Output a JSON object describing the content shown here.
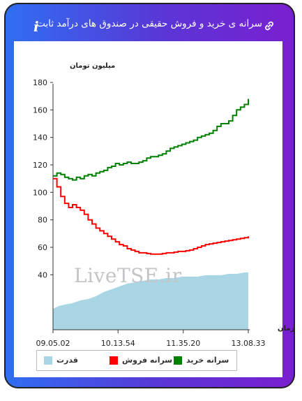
{
  "header": {
    "title": "سرانه ی خرید و فروش حقیقی در صندوق های درآمد ثابت",
    "info_icon": "i",
    "link_icon": "link-icon"
  },
  "watermark": "LiveTSE.ir",
  "colors": {
    "buy": "#008000",
    "sell": "#ff0000",
    "power": "#a9d6e5"
  },
  "chart_data": {
    "type": "line",
    "ylabel": "میلیون تومان",
    "xlabel": "زمان",
    "ylim": [
      0,
      180
    ],
    "y_ticks": [
      40,
      60,
      80,
      100,
      120,
      140,
      160,
      180
    ],
    "x_ticks": [
      "09.05.02",
      "10.13.54",
      "11.35.20",
      "13.08.33"
    ],
    "x_tick_positions": [
      0,
      0.333,
      0.667,
      1
    ],
    "legend": [
      "قدرت",
      "سرانه فروش",
      "سرانه خرید"
    ],
    "series": [
      {
        "name": "سرانه خرید",
        "color": "#008000",
        "x": [
          0,
          0.02,
          0.04,
          0.06,
          0.08,
          0.1,
          0.12,
          0.14,
          0.16,
          0.18,
          0.2,
          0.22,
          0.24,
          0.26,
          0.28,
          0.3,
          0.32,
          0.34,
          0.36,
          0.38,
          0.4,
          0.42,
          0.44,
          0.46,
          0.48,
          0.5,
          0.52,
          0.54,
          0.56,
          0.58,
          0.6,
          0.62,
          0.64,
          0.66,
          0.68,
          0.7,
          0.72,
          0.74,
          0.76,
          0.78,
          0.8,
          0.82,
          0.84,
          0.86,
          0.88,
          0.9,
          0.92,
          0.94,
          0.96,
          0.98,
          1.0
        ],
        "values": [
          112,
          114,
          113,
          111,
          110,
          109,
          111,
          110,
          112,
          113,
          112,
          114,
          115,
          116,
          118,
          119,
          121,
          120,
          121,
          122,
          121,
          121,
          122,
          123,
          125,
          126,
          126,
          127,
          128,
          130,
          132,
          133,
          134,
          135,
          136,
          137,
          138,
          140,
          141,
          142,
          143,
          145,
          148,
          150,
          150,
          152,
          156,
          160,
          162,
          164,
          168
        ]
      },
      {
        "name": "سرانه فروش",
        "color": "#ff0000",
        "x": [
          0,
          0.02,
          0.04,
          0.06,
          0.08,
          0.1,
          0.12,
          0.14,
          0.16,
          0.18,
          0.2,
          0.22,
          0.24,
          0.26,
          0.28,
          0.3,
          0.32,
          0.34,
          0.36,
          0.38,
          0.4,
          0.42,
          0.44,
          0.46,
          0.48,
          0.5,
          0.52,
          0.54,
          0.56,
          0.58,
          0.6,
          0.62,
          0.64,
          0.66,
          0.68,
          0.7,
          0.72,
          0.74,
          0.76,
          0.78,
          0.8,
          0.82,
          0.84,
          0.86,
          0.88,
          0.9,
          0.92,
          0.94,
          0.96,
          0.98,
          1.0
        ],
        "values": [
          110,
          104,
          97,
          92,
          89,
          91,
          89,
          87,
          84,
          80,
          77,
          74,
          72,
          70,
          68,
          66,
          64,
          62,
          61,
          59,
          58,
          57,
          56,
          56,
          55.5,
          55,
          55,
          55,
          55.5,
          56,
          56,
          56.5,
          57,
          57,
          57.5,
          58,
          59,
          60,
          61,
          62,
          62.5,
          63,
          63.5,
          64,
          64.5,
          65,
          65.5,
          66,
          66.5,
          67,
          68
        ]
      }
    ],
    "power": {
      "name": "قدرت",
      "color": "#a9d6e5",
      "x": [
        0,
        0.03,
        0.06,
        0.1,
        0.14,
        0.18,
        0.22,
        0.26,
        0.3,
        0.34,
        0.38,
        0.42,
        0.46,
        0.5,
        0.54,
        0.58,
        0.62,
        0.66,
        0.7,
        0.74,
        0.78,
        0.82,
        0.86,
        0.9,
        0.94,
        0.98,
        1.0
      ],
      "values": [
        15,
        17,
        18,
        19,
        21,
        22,
        24,
        27,
        29,
        31,
        33,
        34,
        35,
        36,
        36,
        37,
        37,
        38,
        38,
        38,
        39,
        39,
        39,
        40,
        40,
        41,
        41
      ]
    }
  }
}
